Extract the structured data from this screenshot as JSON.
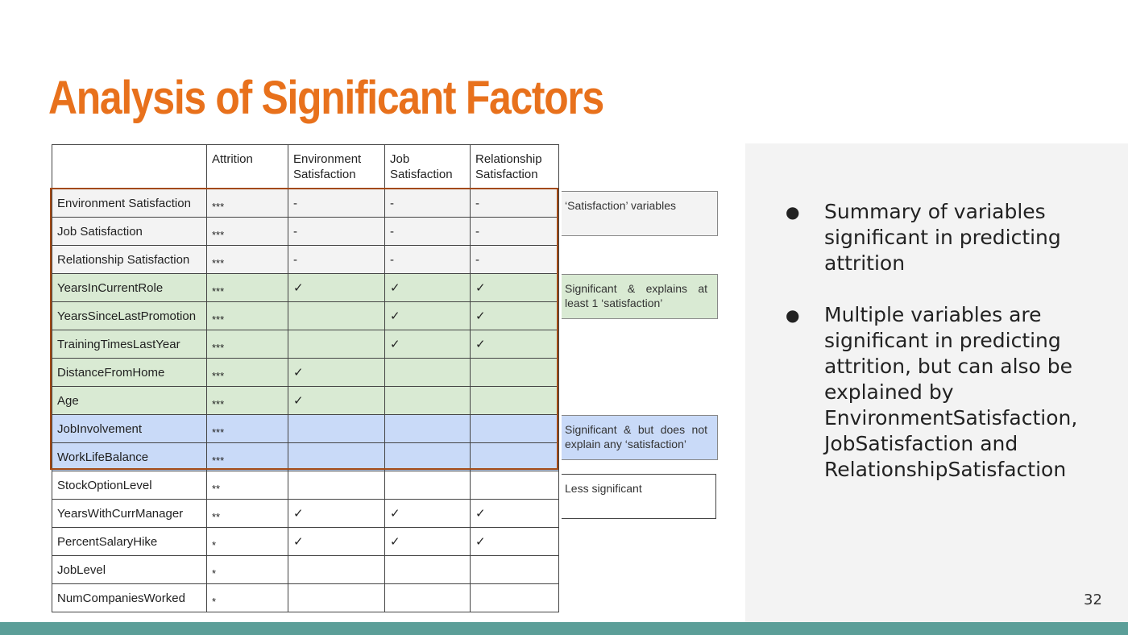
{
  "title": "Analysis of Significant Factors",
  "table": {
    "headers": [
      "",
      "Attrition",
      "Environment Satisfaction",
      "Job Satisfaction",
      "Relationship Satisfaction"
    ],
    "rows": [
      {
        "group": "grey",
        "cells": [
          "Environment Satisfaction",
          "***",
          "-",
          "-",
          "-"
        ]
      },
      {
        "group": "grey",
        "cells": [
          "Job Satisfaction",
          "***",
          "-",
          "-",
          "-"
        ]
      },
      {
        "group": "grey",
        "cells": [
          "Relationship Satisfaction",
          "***",
          "-",
          "-",
          "-"
        ]
      },
      {
        "group": "green",
        "cells": [
          "YearsInCurrentRole",
          "***",
          "✓",
          "✓",
          "✓"
        ]
      },
      {
        "group": "green",
        "cells": [
          "YearsSinceLastPromotion",
          "***",
          "",
          "✓",
          "✓"
        ]
      },
      {
        "group": "green",
        "cells": [
          "TrainingTimesLastYear",
          "***",
          "",
          "✓",
          "✓"
        ]
      },
      {
        "group": "green",
        "cells": [
          "DistanceFromHome",
          "***",
          "✓",
          "",
          ""
        ]
      },
      {
        "group": "green",
        "cells": [
          "Age",
          "***",
          "✓",
          "",
          ""
        ]
      },
      {
        "group": "blue",
        "cells": [
          "JobInvolvement",
          "***",
          "",
          "",
          ""
        ]
      },
      {
        "group": "blue",
        "cells": [
          "WorkLifeBalance",
          "***",
          "",
          "",
          ""
        ]
      },
      {
        "group": "white",
        "cells": [
          "StockOptionLevel",
          "**",
          "",
          "",
          ""
        ]
      },
      {
        "group": "white",
        "cells": [
          "YearsWithCurrManager",
          "**",
          "✓",
          "✓",
          "✓"
        ]
      },
      {
        "group": "white",
        "cells": [
          "PercentSalaryHike",
          "*",
          "✓",
          "✓",
          "✓"
        ]
      },
      {
        "group": "white",
        "cells": [
          "JobLevel",
          "*",
          "",
          "",
          ""
        ]
      },
      {
        "group": "white",
        "cells": [
          "NumCompaniesWorked",
          "*",
          "",
          "",
          ""
        ]
      }
    ]
  },
  "legend": {
    "satisfaction": "‘Satisfaction’ variables",
    "significant_explains": "Significant & explains at least 1 ‘satisfaction’",
    "significant_not_explains": "Significant & but does not explain any ‘satisfaction’",
    "less_significant": "Less significant"
  },
  "bullets": [
    "Summary of variables significant in predicting attrition",
    "Multiple variables are significant in predicting attrition, but can also be explained by EnvironmentSatisfaction, JobSatisfaction and RelationshipSatisfaction"
  ],
  "bullet_symbol": "●",
  "page_number": "32",
  "colors": {
    "title": "#e8711c",
    "grey_group": "#f3f3f3",
    "green_group": "#d9ead3",
    "blue_group": "#c9daf8",
    "highlight_border": "#a34a16",
    "footer_bar": "#5b9e98"
  }
}
